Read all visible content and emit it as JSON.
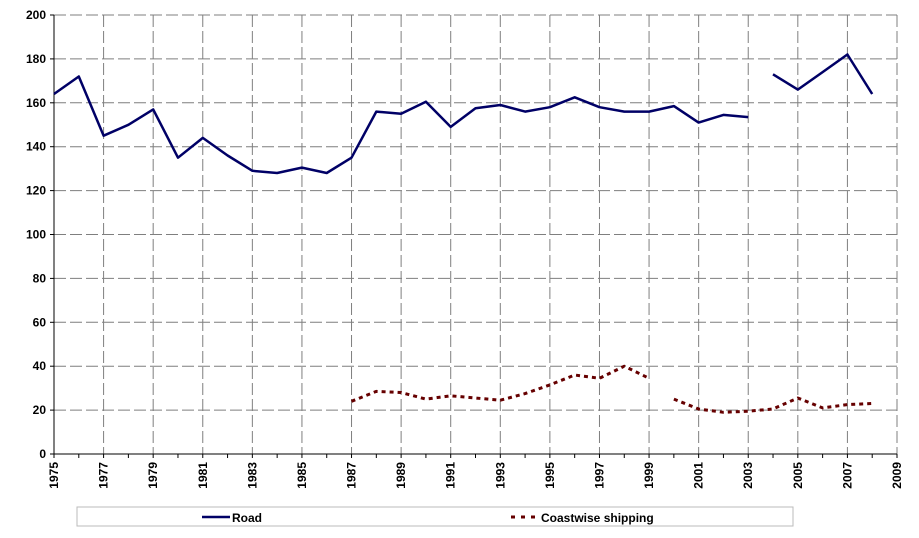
{
  "chart_data": {
    "type": "line",
    "title": "",
    "xlabel": "",
    "ylabel": "",
    "xlim": [
      1975,
      2009
    ],
    "ylim": [
      0,
      200
    ],
    "x_ticks": [
      1975,
      1977,
      1979,
      1981,
      1983,
      1985,
      1987,
      1989,
      1991,
      1993,
      1995,
      1997,
      1999,
      2001,
      2003,
      2005,
      2007,
      2009
    ],
    "y_ticks": [
      0,
      20,
      40,
      60,
      80,
      100,
      120,
      140,
      160,
      180,
      200
    ],
    "grid": true,
    "legend_position": "bottom",
    "series": [
      {
        "name": "Road",
        "color": "#000066",
        "style": "solid",
        "points": [
          [
            1975,
            164
          ],
          [
            1976,
            172
          ],
          [
            1977,
            145
          ],
          [
            1978,
            150
          ],
          [
            1979,
            157
          ],
          [
            1980,
            135
          ],
          [
            1981,
            144
          ],
          [
            1982,
            136
          ],
          [
            1983,
            129
          ],
          [
            1984,
            128
          ],
          [
            1985,
            130.5
          ],
          [
            1986,
            128
          ],
          [
            1987,
            135
          ],
          [
            1988,
            156
          ],
          [
            1989,
            155
          ],
          [
            1990,
            160.5
          ],
          [
            1991,
            149
          ],
          [
            1992,
            157.5
          ],
          [
            1993,
            159
          ],
          [
            1994,
            156
          ],
          [
            1995,
            158
          ],
          [
            1996,
            162.5
          ],
          [
            1997,
            158
          ],
          [
            1998,
            156
          ],
          [
            1999,
            156
          ],
          [
            2000,
            158.5
          ],
          [
            2001,
            151
          ],
          [
            2002,
            154.5
          ],
          [
            2003,
            153.5
          ],
          [
            2004,
            null
          ],
          [
            2004,
            173
          ],
          [
            2005,
            166
          ],
          [
            2006,
            174
          ],
          [
            2007,
            182
          ],
          [
            2008,
            164
          ]
        ]
      },
      {
        "name": "Coastwise shipping",
        "color": "#660000",
        "style": "dotted",
        "points": [
          [
            1987,
            24
          ],
          [
            1988,
            28.5
          ],
          [
            1989,
            28
          ],
          [
            1990,
            25
          ],
          [
            1991,
            26.5
          ],
          [
            1992,
            25.5
          ],
          [
            1993,
            24.5
          ],
          [
            1994,
            27.5
          ],
          [
            1995,
            31.5
          ],
          [
            1996,
            36
          ],
          [
            1997,
            34.5
          ],
          [
            1998,
            40
          ],
          [
            1999,
            34.5
          ],
          [
            1999.5,
            null
          ],
          [
            2000,
            25
          ],
          [
            2001,
            20.5
          ],
          [
            2002,
            19
          ],
          [
            2003,
            19.5
          ],
          [
            2004,
            20.5
          ],
          [
            2005,
            25.5
          ],
          [
            2006,
            21
          ],
          [
            2007,
            22.5
          ],
          [
            2008,
            23
          ]
        ]
      }
    ]
  }
}
